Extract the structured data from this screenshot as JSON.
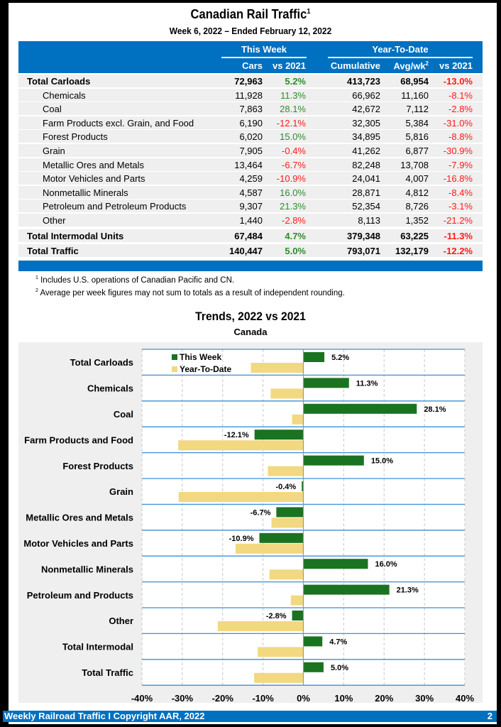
{
  "header": {
    "title": "Canadian Rail Traffic",
    "title_sup": "1",
    "subtitle": "Week 6, 2022 – Ended February 12, 2022"
  },
  "table": {
    "group_headers": {
      "this_week": "This Week",
      "ytd": "Year-To-Date"
    },
    "columns": {
      "cars": "Cars",
      "tw_vs": "vs 2021",
      "cumulative": "Cumulative",
      "avg": "Avg/wk",
      "avg_sup": "2",
      "ytd_vs": "vs 2021"
    },
    "rows": [
      {
        "label": "Total Carloads",
        "bold": true,
        "cars": "72,963",
        "tw_vs": "5.2%",
        "cumulative": "413,723",
        "avg": "68,954",
        "ytd_vs": "-13.0%"
      },
      {
        "label": "Chemicals",
        "bold": false,
        "cars": "11,928",
        "tw_vs": "11.3%",
        "cumulative": "66,962",
        "avg": "11,160",
        "ytd_vs": "-8.1%"
      },
      {
        "label": "Coal",
        "bold": false,
        "cars": "7,863",
        "tw_vs": "28.1%",
        "cumulative": "42,672",
        "avg": "7,112",
        "ytd_vs": "-2.8%"
      },
      {
        "label": "Farm Products excl. Grain, and Food",
        "bold": false,
        "cars": "6,190",
        "tw_vs": "-12.1%",
        "cumulative": "32,305",
        "avg": "5,384",
        "ytd_vs": "-31.0%"
      },
      {
        "label": "Forest Products",
        "bold": false,
        "cars": "6,020",
        "tw_vs": "15.0%",
        "cumulative": "34,895",
        "avg": "5,816",
        "ytd_vs": "-8.8%"
      },
      {
        "label": "Grain",
        "bold": false,
        "cars": "7,905",
        "tw_vs": "-0.4%",
        "cumulative": "41,262",
        "avg": "6,877",
        "ytd_vs": "-30.9%"
      },
      {
        "label": "Metallic Ores and Metals",
        "bold": false,
        "cars": "13,464",
        "tw_vs": "-6.7%",
        "cumulative": "82,248",
        "avg": "13,708",
        "ytd_vs": "-7.9%"
      },
      {
        "label": "Motor Vehicles and Parts",
        "bold": false,
        "cars": "4,259",
        "tw_vs": "-10.9%",
        "cumulative": "24,041",
        "avg": "4,007",
        "ytd_vs": "-16.8%"
      },
      {
        "label": "Nonmetallic Minerals",
        "bold": false,
        "cars": "4,587",
        "tw_vs": "16.0%",
        "cumulative": "28,871",
        "avg": "4,812",
        "ytd_vs": "-8.4%"
      },
      {
        "label": "Petroleum and Petroleum Products",
        "bold": false,
        "cars": "9,307",
        "tw_vs": "21.3%",
        "cumulative": "52,354",
        "avg": "8,726",
        "ytd_vs": "-3.1%"
      },
      {
        "label": "Other",
        "bold": false,
        "cars": "1,440",
        "tw_vs": "-2.8%",
        "cumulative": "8,113",
        "avg": "1,352",
        "ytd_vs": "-21.2%"
      },
      {
        "label": "Total Intermodal Units",
        "bold": true,
        "cars": "67,484",
        "tw_vs": "4.7%",
        "cumulative": "379,348",
        "avg": "63,225",
        "ytd_vs": "-11.3%"
      },
      {
        "label": "Total Traffic",
        "bold": true,
        "cars": "140,447",
        "tw_vs": "5.0%",
        "cumulative": "793,071",
        "avg": "132,179",
        "ytd_vs": "-12.2%"
      }
    ]
  },
  "footnotes": [
    {
      "sup": "1",
      "text": "Includes U.S. operations of Canadian Pacific and CN."
    },
    {
      "sup": "2",
      "text": "Average per week figures may not sum to totals as a result of independent rounding."
    }
  ],
  "colors": {
    "brand_blue": "#0070c0",
    "this_week": "#1a7320",
    "ytd": "#f2d880",
    "positive": "#2e8b2e",
    "negative": "#ff1a1a"
  },
  "chart_data": {
    "type": "bar",
    "orientation": "horizontal",
    "title": "Trends, 2022 vs 2021",
    "subtitle": "Canada",
    "xlabel": "",
    "ylabel": "",
    "xlim": [
      -40,
      40
    ],
    "x_ticks": [
      -40,
      -30,
      -20,
      -10,
      0,
      10,
      20,
      30,
      40
    ],
    "x_tick_labels": [
      "-40%",
      "-30%",
      "-20%",
      "-10%",
      "0%",
      "10%",
      "20%",
      "30%",
      "40%"
    ],
    "grid": true,
    "legend_position": "top-left",
    "categories": [
      "Total Carloads",
      "Chemicals",
      "Coal",
      "Farm Products and Food",
      "Forest Products",
      "Grain",
      "Metallic Ores and Metals",
      "Motor Vehicles and Parts",
      "Nonmetallic Minerals",
      "Petroleum and Products",
      "Other",
      "Total Intermodal",
      "Total Traffic"
    ],
    "series": [
      {
        "name": "This Week",
        "values": [
          5.2,
          11.3,
          28.1,
          -12.1,
          15.0,
          -0.4,
          -6.7,
          -10.9,
          16.0,
          21.3,
          -2.8,
          4.7,
          5.0
        ],
        "data_labels": [
          "5.2%",
          "11.3%",
          "28.1%",
          "-12.1%",
          "15.0%",
          "-0.4%",
          "-6.7%",
          "-10.9%",
          "16.0%",
          "21.3%",
          "-2.8%",
          "4.7%",
          "5.0%"
        ]
      },
      {
        "name": "Year-To-Date",
        "values": [
          -13.0,
          -8.1,
          -2.8,
          -31.0,
          -8.8,
          -30.9,
          -7.9,
          -16.8,
          -8.4,
          -3.1,
          -21.2,
          -11.3,
          -12.2
        ]
      }
    ]
  },
  "footer": {
    "text": "Weekly Railroad Traffic I Copyright AAR, 2022",
    "page": "2"
  }
}
